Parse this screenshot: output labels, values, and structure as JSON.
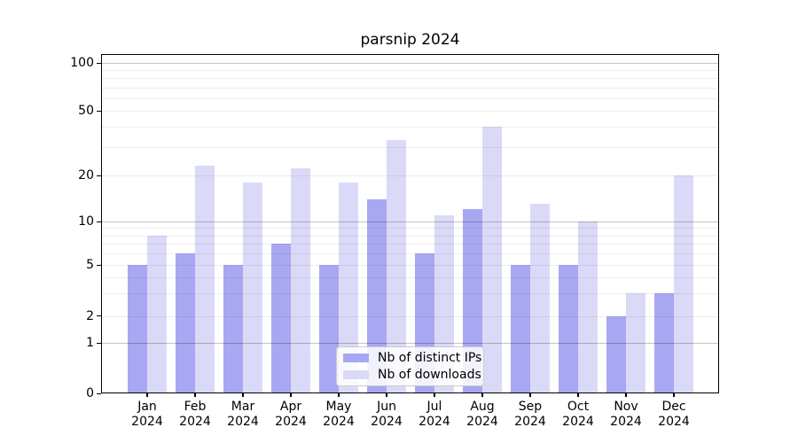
{
  "chart_data": {
    "type": "bar",
    "title": "parsnip 2024",
    "xlabel": "",
    "ylabel": "",
    "year_label": "2024",
    "categories": [
      "Jan",
      "Feb",
      "Mar",
      "Apr",
      "May",
      "Jun",
      "Jul",
      "Aug",
      "Sep",
      "Oct",
      "Nov",
      "Dec"
    ],
    "series": [
      {
        "name": "Nb of distinct IPs",
        "color": "#a8a8f2",
        "values": [
          5,
          6,
          5,
          7,
          5,
          14,
          6,
          12,
          5,
          5,
          2,
          3
        ]
      },
      {
        "name": "Nb of downloads",
        "color": "#dadaf8",
        "values": [
          8,
          23,
          18,
          22,
          18,
          33,
          11,
          40,
          13,
          10,
          3,
          20
        ]
      }
    ],
    "y_axis": {
      "scale": "log-above-1-linear-below-1",
      "tick_labels": [
        0,
        1,
        2,
        5,
        10,
        20,
        50,
        100
      ],
      "major_gridline_values": [
        1,
        10,
        100
      ],
      "minor_gridline_values": [
        2,
        3,
        4,
        5,
        6,
        7,
        8,
        9,
        20,
        30,
        40,
        50,
        60,
        70,
        80,
        90
      ],
      "ylim": [
        0,
        110
      ]
    },
    "legend_position": "lower-center-inside",
    "grid": "on",
    "colors": {
      "axis": "#000000",
      "text": "#000000",
      "legend_border": "#cccccc",
      "background": "#ffffff"
    }
  }
}
